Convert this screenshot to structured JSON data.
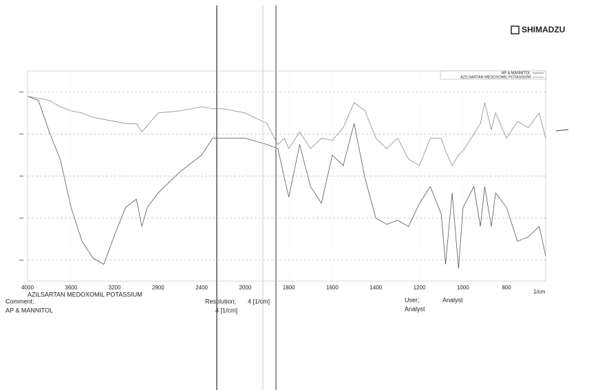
{
  "header": {
    "logo": "SHIMADZU"
  },
  "chart_data": {
    "type": "line",
    "x_label": "1/cm",
    "xlim": [
      4000,
      620
    ],
    "x_scale_break": 2000,
    "xticks": [
      4000,
      3600,
      3200,
      2800,
      2400,
      2000,
      1800,
      1600,
      1400,
      1200,
      1000,
      800
    ],
    "ylim": [
      0,
      100
    ],
    "yticks": [
      10,
      30,
      50,
      70,
      90
    ],
    "grid": true,
    "legend": "top-right",
    "x": [
      4000,
      3900,
      3800,
      3700,
      3600,
      3500,
      3400,
      3300,
      3200,
      3100,
      3000,
      2950,
      2900,
      2800,
      2600,
      2400,
      2300,
      2200,
      2000,
      1900,
      1850,
      1820,
      1800,
      1750,
      1700,
      1650,
      1600,
      1550,
      1500,
      1450,
      1400,
      1350,
      1300,
      1250,
      1200,
      1150,
      1100,
      1080,
      1050,
      1020,
      1000,
      950,
      920,
      900,
      870,
      850,
      800,
      750,
      700,
      650,
      620
    ],
    "series": [
      {
        "name": "AP & MANNITOL",
        "color": "#555555",
        "values": [
          88,
          86,
          71,
          58,
          35,
          19,
          11,
          8,
          22,
          35,
          39,
          26,
          35,
          42,
          52,
          60,
          68,
          68,
          68,
          65,
          63,
          49,
          40,
          65,
          45,
          37,
          60,
          55,
          75,
          49,
          30,
          27,
          29,
          26,
          37,
          45,
          32,
          8,
          42,
          6,
          35,
          45,
          26,
          45,
          26,
          42,
          35,
          19,
          21,
          26,
          12
        ]
      },
      {
        "name": "AZILSARTAN MEDOXOMIL POTASSIUM",
        "color": "#888888",
        "values": [
          88,
          87,
          86,
          83,
          81,
          80,
          78,
          77,
          76,
          75,
          75,
          71,
          74,
          80,
          81,
          83,
          82,
          82,
          80,
          75,
          65,
          68,
          63,
          71,
          63,
          68,
          67,
          73,
          85,
          81,
          68,
          63,
          68,
          58,
          55,
          68,
          68,
          62,
          55,
          60,
          62,
          70,
          75,
          85,
          72,
          80,
          68,
          76,
          73,
          80,
          68
        ]
      }
    ]
  },
  "footer": {
    "sample": "AZILSARTAN MEDOXOMIL POTASSIUM",
    "comment_label": "Comment;",
    "comment_2": "AP & MANNITOL",
    "resolution_label": "Resolution;",
    "resolution_1": "4 [1/cm]",
    "resolution_2": "4 [1/cm]",
    "user_label": "User;",
    "user_1": "Analyst",
    "user_2": "Analyst"
  }
}
